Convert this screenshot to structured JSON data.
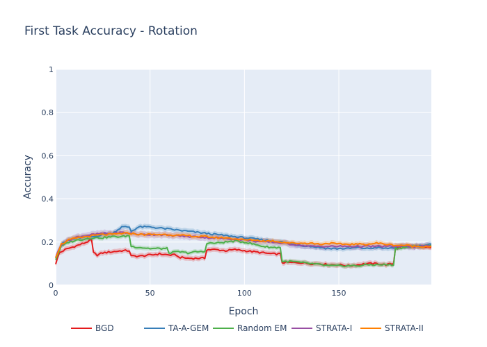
{
  "chart_data": {
    "type": "line",
    "title": "First Task Accuracy - Rotation",
    "xlabel": "Epoch",
    "ylabel": "Accuracy",
    "xlim": [
      0,
      199
    ],
    "ylim": [
      0,
      1
    ],
    "x_ticks": [
      0,
      50,
      100,
      150
    ],
    "y_ticks": [
      0,
      0.2,
      0.4,
      0.6,
      0.8,
      1
    ],
    "y_tick_labels": [
      "0",
      "0.2",
      "0.4",
      "0.6",
      "0.8",
      "1"
    ],
    "grid": true,
    "legend_position": "bottom-center",
    "series": [
      {
        "name": "BGD",
        "color": "#e41a1c",
        "points": [
          [
            0,
            0.1
          ],
          [
            2,
            0.15
          ],
          [
            5,
            0.165
          ],
          [
            10,
            0.18
          ],
          [
            15,
            0.195
          ],
          [
            19,
            0.21
          ],
          [
            20,
            0.15
          ],
          [
            22,
            0.14
          ],
          [
            25,
            0.15
          ],
          [
            30,
            0.155
          ],
          [
            35,
            0.16
          ],
          [
            39,
            0.16
          ],
          [
            40,
            0.135
          ],
          [
            45,
            0.135
          ],
          [
            50,
            0.14
          ],
          [
            55,
            0.145
          ],
          [
            60,
            0.14
          ],
          [
            64,
            0.14
          ],
          [
            65,
            0.13
          ],
          [
            70,
            0.125
          ],
          [
            75,
            0.125
          ],
          [
            79,
            0.125
          ],
          [
            80,
            0.165
          ],
          [
            85,
            0.165
          ],
          [
            90,
            0.16
          ],
          [
            95,
            0.165
          ],
          [
            100,
            0.16
          ],
          [
            105,
            0.155
          ],
          [
            110,
            0.15
          ],
          [
            115,
            0.145
          ],
          [
            119,
            0.145
          ],
          [
            120,
            0.105
          ],
          [
            125,
            0.105
          ],
          [
            130,
            0.105
          ],
          [
            135,
            0.1
          ],
          [
            140,
            0.1
          ],
          [
            145,
            0.095
          ],
          [
            150,
            0.095
          ],
          [
            155,
            0.09
          ],
          [
            160,
            0.095
          ],
          [
            165,
            0.1
          ],
          [
            170,
            0.1
          ],
          [
            175,
            0.095
          ],
          [
            179,
            0.1
          ],
          [
            180,
            0.175
          ],
          [
            185,
            0.18
          ],
          [
            190,
            0.18
          ],
          [
            195,
            0.175
          ],
          [
            199,
            0.175
          ]
        ],
        "band": 0.012
      },
      {
        "name": "TA-A-GEM",
        "color": "#377eb8",
        "points": [
          [
            0,
            0.13
          ],
          [
            3,
            0.19
          ],
          [
            7,
            0.21
          ],
          [
            12,
            0.22
          ],
          [
            20,
            0.225
          ],
          [
            25,
            0.235
          ],
          [
            30,
            0.24
          ],
          [
            35,
            0.27
          ],
          [
            39,
            0.27
          ],
          [
            40,
            0.25
          ],
          [
            44,
            0.27
          ],
          [
            50,
            0.27
          ],
          [
            55,
            0.265
          ],
          [
            60,
            0.26
          ],
          [
            65,
            0.255
          ],
          [
            70,
            0.25
          ],
          [
            75,
            0.245
          ],
          [
            80,
            0.24
          ],
          [
            85,
            0.235
          ],
          [
            90,
            0.23
          ],
          [
            95,
            0.225
          ],
          [
            100,
            0.22
          ],
          [
            105,
            0.215
          ],
          [
            110,
            0.21
          ],
          [
            115,
            0.205
          ],
          [
            120,
            0.2
          ],
          [
            125,
            0.19
          ],
          [
            130,
            0.185
          ],
          [
            135,
            0.18
          ],
          [
            140,
            0.175
          ],
          [
            145,
            0.17
          ],
          [
            150,
            0.17
          ],
          [
            155,
            0.17
          ],
          [
            160,
            0.175
          ],
          [
            165,
            0.17
          ],
          [
            170,
            0.175
          ],
          [
            175,
            0.17
          ],
          [
            180,
            0.175
          ],
          [
            185,
            0.18
          ],
          [
            190,
            0.18
          ],
          [
            195,
            0.185
          ],
          [
            199,
            0.19
          ]
        ],
        "band": 0.012
      },
      {
        "name": "Random EM",
        "color": "#4daf4a",
        "points": [
          [
            0,
            0.12
          ],
          [
            3,
            0.18
          ],
          [
            7,
            0.2
          ],
          [
            12,
            0.21
          ],
          [
            20,
            0.22
          ],
          [
            25,
            0.22
          ],
          [
            30,
            0.225
          ],
          [
            35,
            0.225
          ],
          [
            39,
            0.23
          ],
          [
            40,
            0.18
          ],
          [
            45,
            0.175
          ],
          [
            50,
            0.17
          ],
          [
            55,
            0.17
          ],
          [
            59,
            0.17
          ],
          [
            60,
            0.15
          ],
          [
            65,
            0.155
          ],
          [
            70,
            0.15
          ],
          [
            75,
            0.155
          ],
          [
            79,
            0.155
          ],
          [
            80,
            0.195
          ],
          [
            85,
            0.195
          ],
          [
            90,
            0.2
          ],
          [
            95,
            0.205
          ],
          [
            100,
            0.2
          ],
          [
            105,
            0.19
          ],
          [
            110,
            0.18
          ],
          [
            115,
            0.175
          ],
          [
            119,
            0.175
          ],
          [
            120,
            0.11
          ],
          [
            125,
            0.11
          ],
          [
            130,
            0.105
          ],
          [
            135,
            0.1
          ],
          [
            140,
            0.095
          ],
          [
            145,
            0.09
          ],
          [
            150,
            0.09
          ],
          [
            155,
            0.09
          ],
          [
            160,
            0.09
          ],
          [
            165,
            0.095
          ],
          [
            170,
            0.095
          ],
          [
            175,
            0.095
          ],
          [
            179,
            0.095
          ],
          [
            180,
            0.17
          ],
          [
            185,
            0.175
          ],
          [
            190,
            0.18
          ],
          [
            195,
            0.18
          ],
          [
            199,
            0.185
          ]
        ],
        "band": 0.01
      },
      {
        "name": "STRATA-I",
        "color": "#984ea3",
        "points": [
          [
            0,
            0.13
          ],
          [
            3,
            0.19
          ],
          [
            7,
            0.21
          ],
          [
            12,
            0.225
          ],
          [
            20,
            0.235
          ],
          [
            25,
            0.24
          ],
          [
            30,
            0.24
          ],
          [
            35,
            0.245
          ],
          [
            40,
            0.24
          ],
          [
            45,
            0.235
          ],
          [
            50,
            0.235
          ],
          [
            55,
            0.235
          ],
          [
            60,
            0.23
          ],
          [
            65,
            0.23
          ],
          [
            70,
            0.225
          ],
          [
            75,
            0.225
          ],
          [
            80,
            0.22
          ],
          [
            85,
            0.22
          ],
          [
            90,
            0.215
          ],
          [
            95,
            0.215
          ],
          [
            100,
            0.21
          ],
          [
            105,
            0.205
          ],
          [
            110,
            0.2
          ],
          [
            115,
            0.2
          ],
          [
            120,
            0.195
          ],
          [
            125,
            0.19
          ],
          [
            130,
            0.185
          ],
          [
            135,
            0.18
          ],
          [
            140,
            0.18
          ],
          [
            145,
            0.18
          ],
          [
            150,
            0.18
          ],
          [
            155,
            0.18
          ],
          [
            160,
            0.18
          ],
          [
            165,
            0.18
          ],
          [
            170,
            0.18
          ],
          [
            175,
            0.18
          ],
          [
            180,
            0.18
          ],
          [
            185,
            0.18
          ],
          [
            190,
            0.18
          ],
          [
            195,
            0.18
          ],
          [
            199,
            0.18
          ]
        ],
        "band": 0.015
      },
      {
        "name": "STRATA-II",
        "color": "#ff7f00",
        "points": [
          [
            0,
            0.13
          ],
          [
            3,
            0.19
          ],
          [
            7,
            0.21
          ],
          [
            12,
            0.22
          ],
          [
            20,
            0.23
          ],
          [
            25,
            0.235
          ],
          [
            30,
            0.235
          ],
          [
            35,
            0.24
          ],
          [
            40,
            0.24
          ],
          [
            45,
            0.235
          ],
          [
            50,
            0.235
          ],
          [
            55,
            0.235
          ],
          [
            60,
            0.235
          ],
          [
            65,
            0.23
          ],
          [
            70,
            0.23
          ],
          [
            75,
            0.225
          ],
          [
            80,
            0.225
          ],
          [
            85,
            0.22
          ],
          [
            90,
            0.22
          ],
          [
            95,
            0.215
          ],
          [
            100,
            0.21
          ],
          [
            105,
            0.21
          ],
          [
            110,
            0.205
          ],
          [
            115,
            0.205
          ],
          [
            120,
            0.2
          ],
          [
            125,
            0.195
          ],
          [
            130,
            0.195
          ],
          [
            135,
            0.195
          ],
          [
            140,
            0.19
          ],
          [
            145,
            0.195
          ],
          [
            150,
            0.19
          ],
          [
            155,
            0.19
          ],
          [
            160,
            0.19
          ],
          [
            165,
            0.19
          ],
          [
            170,
            0.195
          ],
          [
            175,
            0.19
          ],
          [
            180,
            0.185
          ],
          [
            185,
            0.185
          ],
          [
            190,
            0.18
          ],
          [
            195,
            0.18
          ],
          [
            199,
            0.18
          ]
        ],
        "band": 0.012
      }
    ]
  }
}
